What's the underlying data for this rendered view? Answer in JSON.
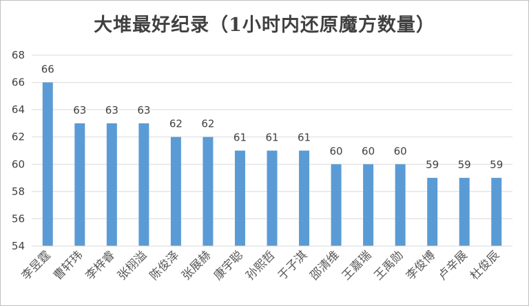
{
  "chart_data": {
    "type": "bar",
    "title": "大堆最好纪录（1小时内还原魔方数量）",
    "xlabel": "",
    "ylabel": "",
    "categories": [
      "李昱霆",
      "曹轩玮",
      "李梓睿",
      "张栩溢",
      "陈俊泽",
      "张展赫",
      "康宇聪",
      "孙熙哲",
      "于子淇",
      "邵清维",
      "王嘉瑞",
      "王禹勋",
      "李俊博",
      "卢辛展",
      "杜俊辰"
    ],
    "values": [
      66,
      63,
      63,
      63,
      62,
      62,
      61,
      61,
      61,
      60,
      60,
      60,
      59,
      59,
      59
    ],
    "ylim": [
      54,
      68
    ],
    "yticks": [
      54,
      56,
      58,
      60,
      62,
      64,
      66,
      68
    ],
    "grid": true,
    "legend": "none",
    "bar_color": "#5b9bd5",
    "grid_color": "#d9d9d9"
  }
}
